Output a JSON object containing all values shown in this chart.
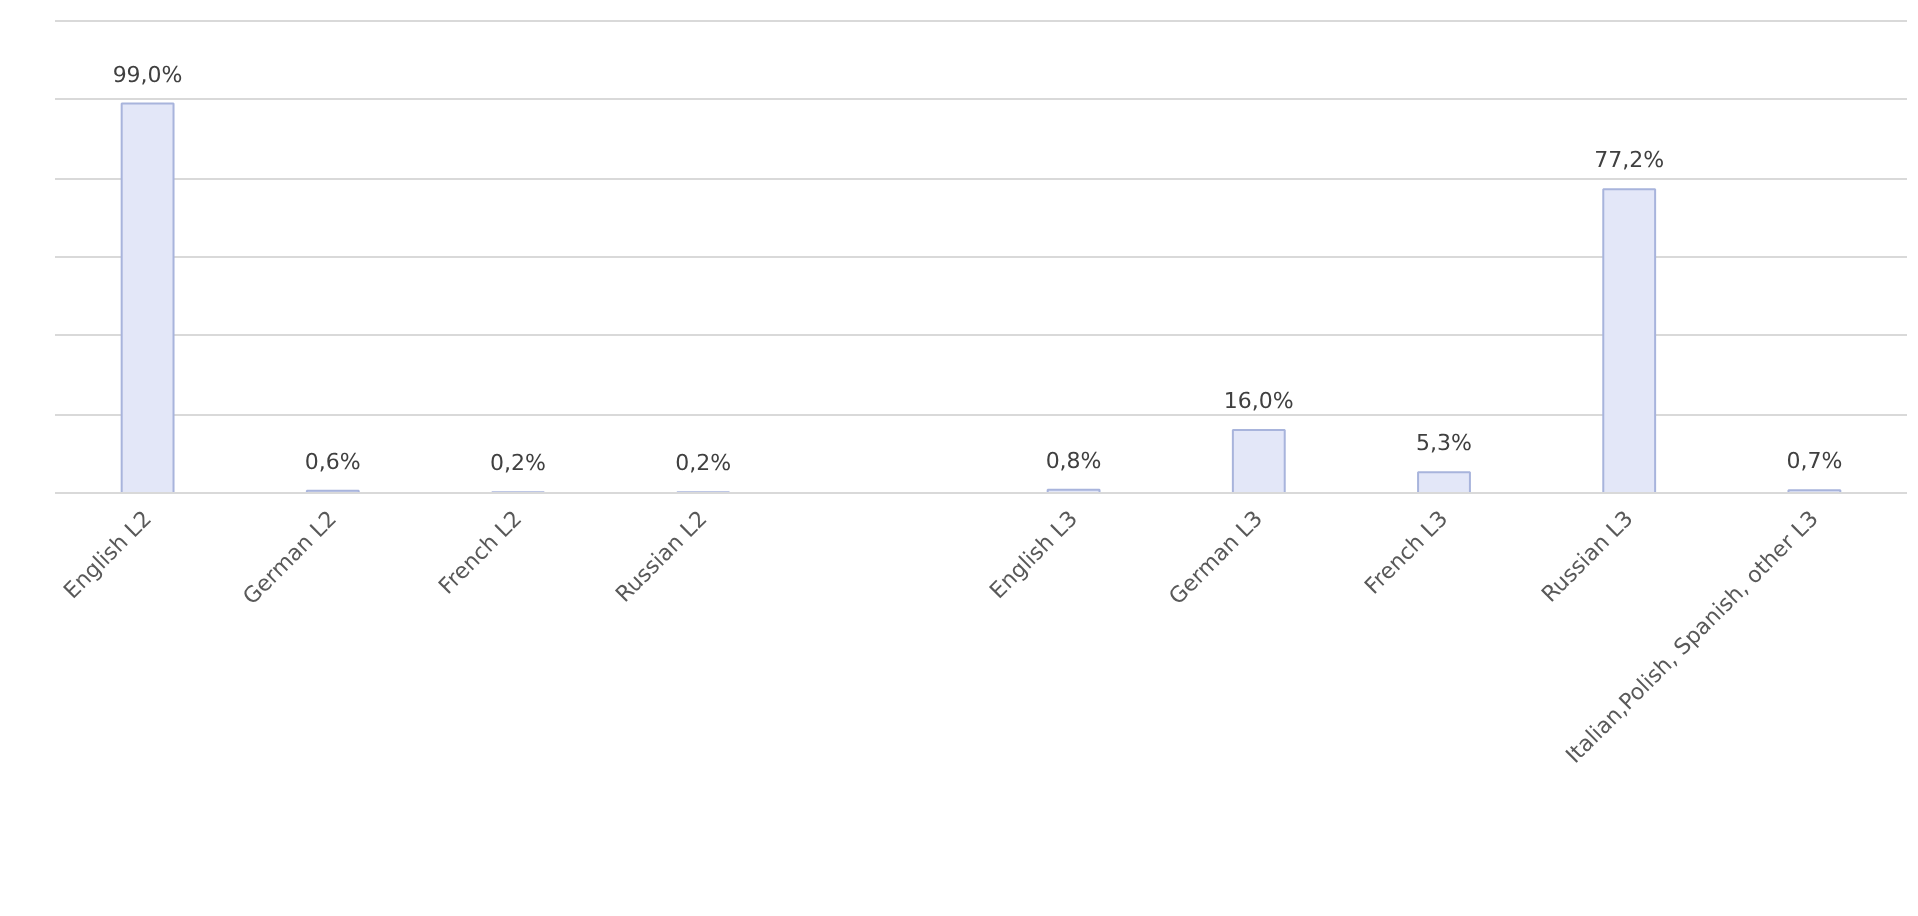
{
  "chart_data": {
    "type": "bar",
    "categories": [
      "English L2",
      "German L2",
      "French L2",
      "Russian L2",
      null,
      "English L3",
      "German L3",
      "French L3",
      "Russian L3",
      "Italian,Polish, Spanish, other L3"
    ],
    "values": [
      99.0,
      0.6,
      0.2,
      0.2,
      null,
      0.8,
      16.0,
      5.3,
      77.2,
      0.7
    ],
    "value_labels": [
      "99,0%",
      "0,6%",
      "0,2%",
      "0,2%",
      null,
      "0,8%",
      "16,0%",
      "5,3%",
      "77,2%",
      "0,7%"
    ],
    "color": "#e3e7f8",
    "ylim": [
      0,
      120
    ],
    "yticks": [
      {
        "value": 0,
        "label": null
      },
      {
        "value": 20,
        "label": null
      },
      {
        "value": 40,
        "label": null
      },
      {
        "value": 60,
        "label": null
      },
      {
        "value": 80,
        "label": null
      },
      {
        "value": 100,
        "label": null
      },
      {
        "value": 120,
        "label": null
      }
    ],
    "tick_labels": "x",
    "grid": "y"
  }
}
